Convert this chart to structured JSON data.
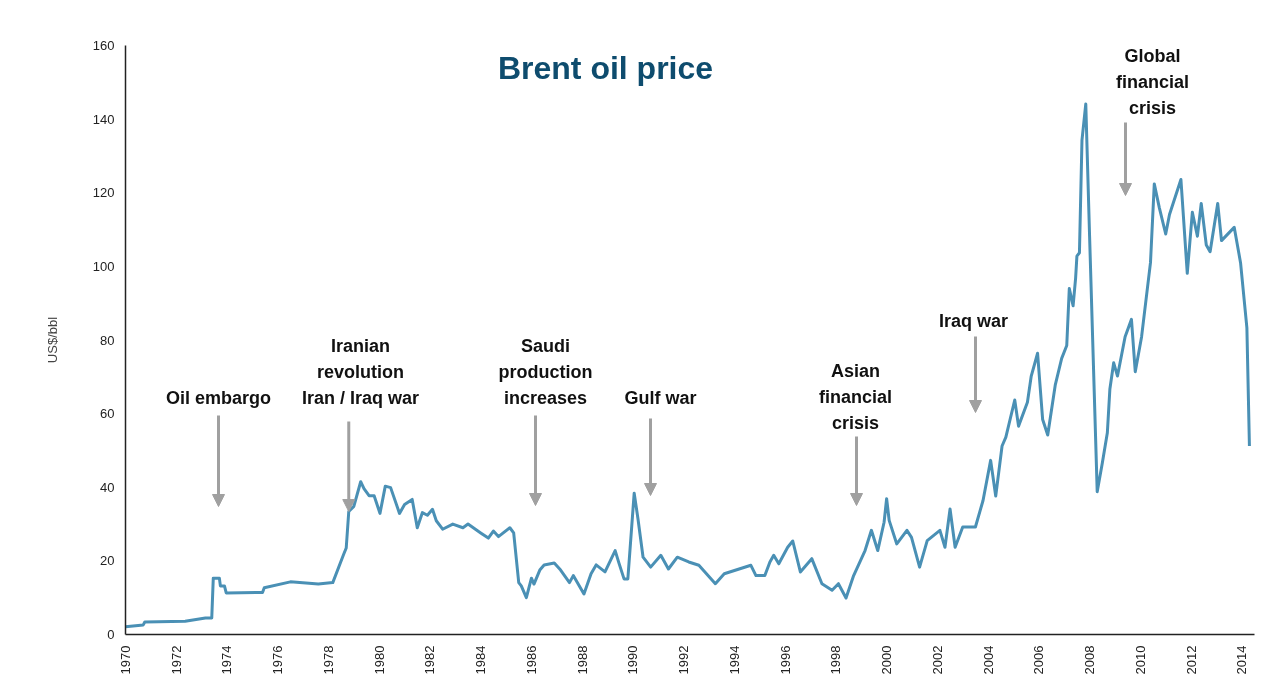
{
  "chart_data": {
    "type": "line",
    "title": "Brent oil price",
    "ylabel": "US$/bbl",
    "x": [
      1970,
      1970.7,
      1970.76,
      1972.35,
      1973.15,
      1973.4,
      1973.46,
      1973.7,
      1973.74,
      1973.9,
      1973.97,
      1975.4,
      1975.47,
      1976.5,
      1977.6,
      1978.17,
      1978.6,
      1978.7,
      1978.8,
      1979.0,
      1979.27,
      1979.4,
      1979.6,
      1979.8,
      1980.03,
      1980.24,
      1980.45,
      1980.8,
      1981.0,
      1981.3,
      1981.5,
      1981.7,
      1981.9,
      1982.1,
      1982.25,
      1982.5,
      1982.9,
      1983.3,
      1983.5,
      1984.0,
      1984.3,
      1984.5,
      1984.7,
      1985.15,
      1985.3,
      1985.5,
      1985.6,
      1985.8,
      1986.0,
      1986.1,
      1986.33,
      1986.5,
      1986.9,
      1987.15,
      1987.5,
      1987.65,
      1988.07,
      1988.35,
      1988.55,
      1988.9,
      1989.3,
      1989.45,
      1989.65,
      1989.8,
      1990.05,
      1990.2,
      1990.4,
      1990.7,
      1991.1,
      1991.4,
      1991.75,
      1992.2,
      1992.6,
      1993.25,
      1993.6,
      1994.65,
      1994.85,
      1995.2,
      1995.4,
      1995.55,
      1995.75,
      1996.1,
      1996.3,
      1996.6,
      1997.05,
      1997.45,
      1997.85,
      1998.1,
      1998.4,
      1998.7,
      1999.15,
      1999.4,
      1999.65,
      1999.9,
      2000.0,
      2000.1,
      2000.4,
      2000.8,
      2000.98,
      2001.3,
      2001.6,
      2002.1,
      2002.3,
      2002.5,
      2002.7,
      2003.0,
      2003.5,
      2003.8,
      2004.1,
      2004.3,
      2004.55,
      2004.7,
      2005.05,
      2005.2,
      2005.55,
      2005.7,
      2005.95,
      2006.15,
      2006.35,
      2006.65,
      2006.9,
      2007.1,
      2007.2,
      2007.35,
      2007.45,
      2007.5,
      2007.6,
      2007.7,
      2007.85,
      2008.0,
      2008.3,
      2008.5,
      2008.7,
      2008.8,
      2008.95,
      2009.1,
      2009.4,
      2009.65,
      2009.8,
      2010.05,
      2010.4,
      2010.55,
      2010.75,
      2011.0,
      2011.15,
      2011.6,
      2011.85,
      2012.05,
      2012.25,
      2012.4,
      2012.6,
      2012.75,
      2013.05,
      2013.2,
      2013.7,
      2013.95,
      2014.2,
      2014.3
    ],
    "series": [
      {
        "color": "#4a90b5",
        "values": [
          2.1,
          2.6,
          3.4,
          3.6,
          4.5,
          4.5,
          15.3,
          15.3,
          13.2,
          13.2,
          11.3,
          11.4,
          12.7,
          14.3,
          13.7,
          14.1,
          21.8,
          23.5,
          33.4,
          34.8,
          41.5,
          39.6,
          37.7,
          37.7,
          32.9,
          40.3,
          39.9,
          32.9,
          35.3,
          36.7,
          29.0,
          33.1,
          32.4,
          34,
          30.9,
          28.6,
          30,
          29,
          30,
          27.6,
          26.2,
          28.1,
          26.6,
          29,
          27.6,
          14.1,
          13.2,
          10,
          15.3,
          13.7,
          17.5,
          18.9,
          19.4,
          17.5,
          14.1,
          16,
          11,
          16.5,
          18.9,
          17,
          22.8,
          19.4,
          15.1,
          15.1,
          38.4,
          31.4,
          21,
          18.3,
          21.5,
          17.8,
          21,
          19.7,
          18.8,
          13.8,
          16.5,
          18.8,
          16,
          16,
          19.7,
          21.5,
          19.2,
          23.7,
          25.4,
          17,
          20.6,
          13.8,
          12,
          13.8,
          9.9,
          16,
          22.8,
          28.3,
          22.8,
          30.5,
          36.9,
          31,
          24.6,
          28.3,
          26.4,
          18.3,
          25.5,
          28.3,
          23.7,
          34.1,
          23.7,
          29.2,
          29.2,
          36.4,
          47.3,
          37.6,
          51.2,
          53.6,
          63.7,
          56.6,
          63.1,
          70.2,
          76.4,
          58.4,
          54.2,
          67.9,
          75,
          78.5,
          94,
          89.3,
          96.9,
          102.8,
          103.7,
          134.3,
          144.1,
          108.2,
          38.8,
          46.5,
          54.8,
          66.7,
          73.8,
          70.2,
          80.9,
          85.6,
          71.4,
          80.9,
          101,
          122.4,
          115.9,
          108.8,
          114.1,
          123.6,
          98.1,
          114.7,
          108.2,
          117.1,
          105.8,
          104,
          117.1,
          107,
          110.6,
          101,
          83.3,
          51.2
        ]
      }
    ],
    "xlim": [
      1970,
      2014.5
    ],
    "xticks": [
      1970,
      1972,
      1974,
      1976,
      1978,
      1980,
      1982,
      1984,
      1986,
      1988,
      1990,
      1992,
      1994,
      1996,
      1998,
      2000,
      2002,
      2004,
      2006,
      2008,
      2010,
      2012,
      2014
    ],
    "ylim": [
      0,
      160
    ],
    "yticks": [
      0,
      20,
      40,
      60,
      80,
      100,
      120,
      140,
      160
    ],
    "grid": false,
    "marker": "none",
    "line_style": "solid",
    "annotations": [
      "Oil embargo",
      {
        "text": "Iranian\nrevolution\nIran / Iraq war",
        "x": 1978.8,
        "y": 33.4
      },
      "Saudi\nproduction\nincreases",
      "Gulf war",
      "Asian\nfinancial\ncrisis",
      "Iraq war",
      "Global\nfinancial\ncrisis"
    ]
  }
}
